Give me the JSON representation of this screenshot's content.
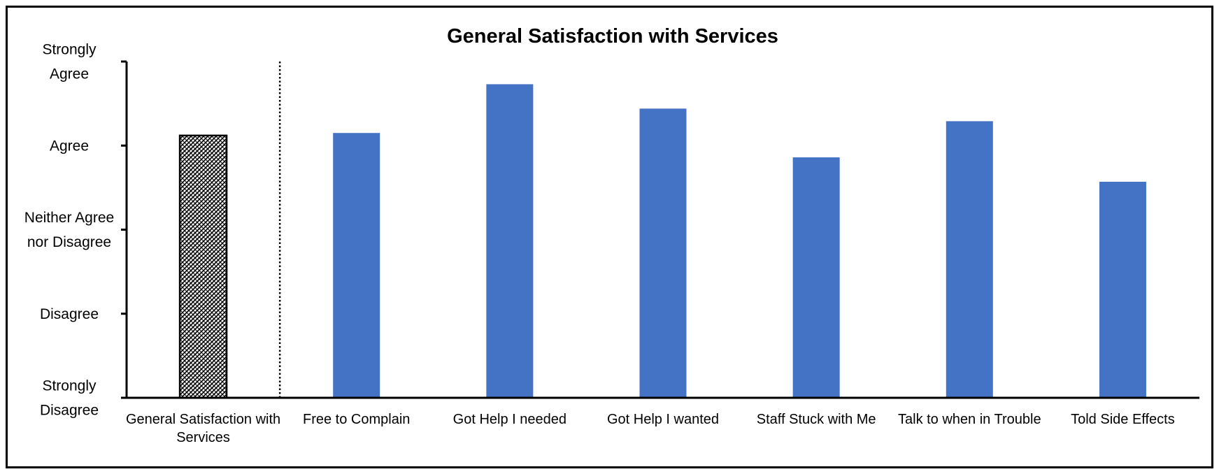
{
  "chart_data": {
    "type": "bar",
    "title": "General Satisfaction with Services",
    "xlabel": "",
    "ylabel": "",
    "ylim": [
      1,
      5
    ],
    "y_tick_values": [
      1,
      2,
      3,
      4,
      5
    ],
    "y_tick_labels": [
      [
        "Strongly",
        "Disagree"
      ],
      [
        "Disagree"
      ],
      [
        "Neither Agree",
        "nor Disagree"
      ],
      [
        "Agree"
      ],
      [
        "Strongly",
        "Agree"
      ]
    ],
    "categories": [
      [
        "General Satisfaction with",
        "Services"
      ],
      [
        "Free to Complain"
      ],
      [
        "Got Help I needed"
      ],
      [
        "Got Help I wanted"
      ],
      [
        "Staff Stuck with Me"
      ],
      [
        "Talk to when in Trouble"
      ],
      [
        "Told Side Effects"
      ]
    ],
    "values": [
      4.12,
      4.15,
      4.73,
      4.44,
      3.86,
      4.29,
      3.57
    ],
    "bar_styles": [
      "crosshatch",
      "solid",
      "solid",
      "solid",
      "solid",
      "solid",
      "solid"
    ],
    "separator_after_category": 0,
    "grid": false,
    "legend": "none",
    "colors": {
      "bar": "#4472C4",
      "pattern": "#000000",
      "axis": "#000000"
    }
  }
}
